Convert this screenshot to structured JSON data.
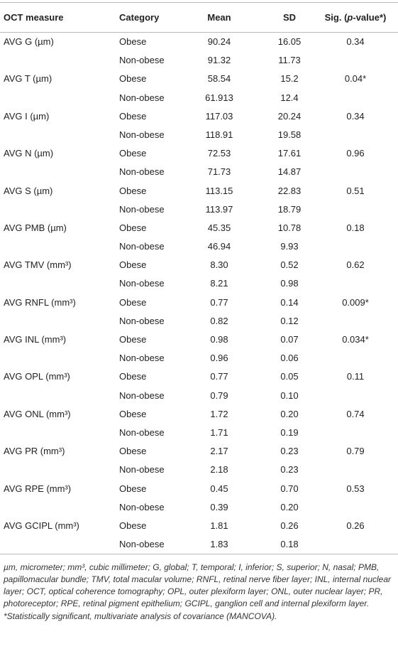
{
  "header": {
    "measure": "OCT measure",
    "category": "Category",
    "mean": "Mean",
    "sd": "SD",
    "sig_pre": "Sig. (",
    "sig_italic": "p",
    "sig_post": "-value*)"
  },
  "table": {
    "groups": [
      {
        "measure": "AVG G (µm)",
        "sig": "0.34",
        "rows": [
          [
            "Obese",
            "90.24",
            "16.05"
          ],
          [
            "Non-obese",
            "91.32",
            "11.73"
          ]
        ]
      },
      {
        "measure": "AVG T (µm)",
        "sig": "0.04*",
        "rows": [
          [
            "Obese",
            "58.54",
            "15.2"
          ],
          [
            "Non-obese",
            "61.913",
            "12.4"
          ]
        ]
      },
      {
        "measure": "AVG I (µm)",
        "sig": "0.34",
        "rows": [
          [
            "Obese",
            "117.03",
            "20.24"
          ],
          [
            "Non-obese",
            "118.91",
            "19.58"
          ]
        ]
      },
      {
        "measure": "AVG N (µm)",
        "sig": "0.96",
        "rows": [
          [
            "Obese",
            "72.53",
            "17.61"
          ],
          [
            "Non-obese",
            "71.73",
            "14.87"
          ]
        ]
      },
      {
        "measure": "AVG S (µm)",
        "sig": "0.51",
        "rows": [
          [
            "Obese",
            "113.15",
            "22.83"
          ],
          [
            "Non-obese",
            "113.97",
            "18.79"
          ]
        ]
      },
      {
        "measure": "AVG PMB (µm)",
        "sig": "0.18",
        "rows": [
          [
            "Obese",
            "45.35",
            "10.78"
          ],
          [
            "Non-obese",
            "46.94",
            "9.93"
          ]
        ]
      },
      {
        "measure": "AVG TMV (mm³)",
        "sig": "0.62",
        "rows": [
          [
            "Obese",
            "8.30",
            "0.52"
          ],
          [
            "Non-obese",
            "8.21",
            "0.98"
          ]
        ]
      },
      {
        "measure": "AVG RNFL (mm³)",
        "sig": "0.009*",
        "rows": [
          [
            "Obese",
            "0.77",
            "0.14"
          ],
          [
            "Non-obese",
            "0.82",
            "0.12"
          ]
        ]
      },
      {
        "measure": "AVG INL (mm³)",
        "sig": "0.034*",
        "rows": [
          [
            "Obese",
            "0.98",
            "0.07"
          ],
          [
            "Non-obese",
            "0.96",
            "0.06"
          ]
        ]
      },
      {
        "measure": "AVG OPL (mm³)",
        "sig": "0.11",
        "rows": [
          [
            "Obese",
            "0.77",
            "0.05"
          ],
          [
            "Non-obese",
            "0.79",
            "0.10"
          ]
        ]
      },
      {
        "measure": "AVG ONL (mm³)",
        "sig": "0.74",
        "rows": [
          [
            "Obese",
            "1.72",
            "0.20"
          ],
          [
            "Non-obese",
            "1.71",
            "0.19"
          ]
        ]
      },
      {
        "measure": "AVG PR (mm³)",
        "sig": "0.79",
        "rows": [
          [
            "Obese",
            "2.17",
            "0.23"
          ],
          [
            "Non-obese",
            "2.18",
            "0.23"
          ]
        ]
      },
      {
        "measure": "AVG RPE (mm³)",
        "sig": "0.53",
        "rows": [
          [
            "Obese",
            "0.45",
            "0.70"
          ],
          [
            "Non-obese",
            "0.39",
            "0.20"
          ]
        ]
      },
      {
        "measure": "AVG GCIPL (mm³)",
        "sig": "0.26",
        "rows": [
          [
            "Obese",
            "1.81",
            "0.26"
          ],
          [
            "Non-obese",
            "1.83",
            "0.18"
          ]
        ]
      }
    ]
  },
  "footnotes": [
    "µm, micrometer; mm³, cubic millimeter; G, global; T, temporal; I, inferior; S, superior; N, nasal; PMB, papillomacular bundle; TMV, total macular volume; RNFL, retinal nerve fiber layer; INL, internal nuclear layer; OCT, optical coherence tomography; OPL, outer plexiform layer; ONL, outer nuclear layer; PR, photoreceptor; RPE, retinal pigment epithelium; GCIPL, ganglion cell and internal plexiform layer.",
    "*Statistically significant, multivariate analysis of covariance (MANCOVA)."
  ]
}
